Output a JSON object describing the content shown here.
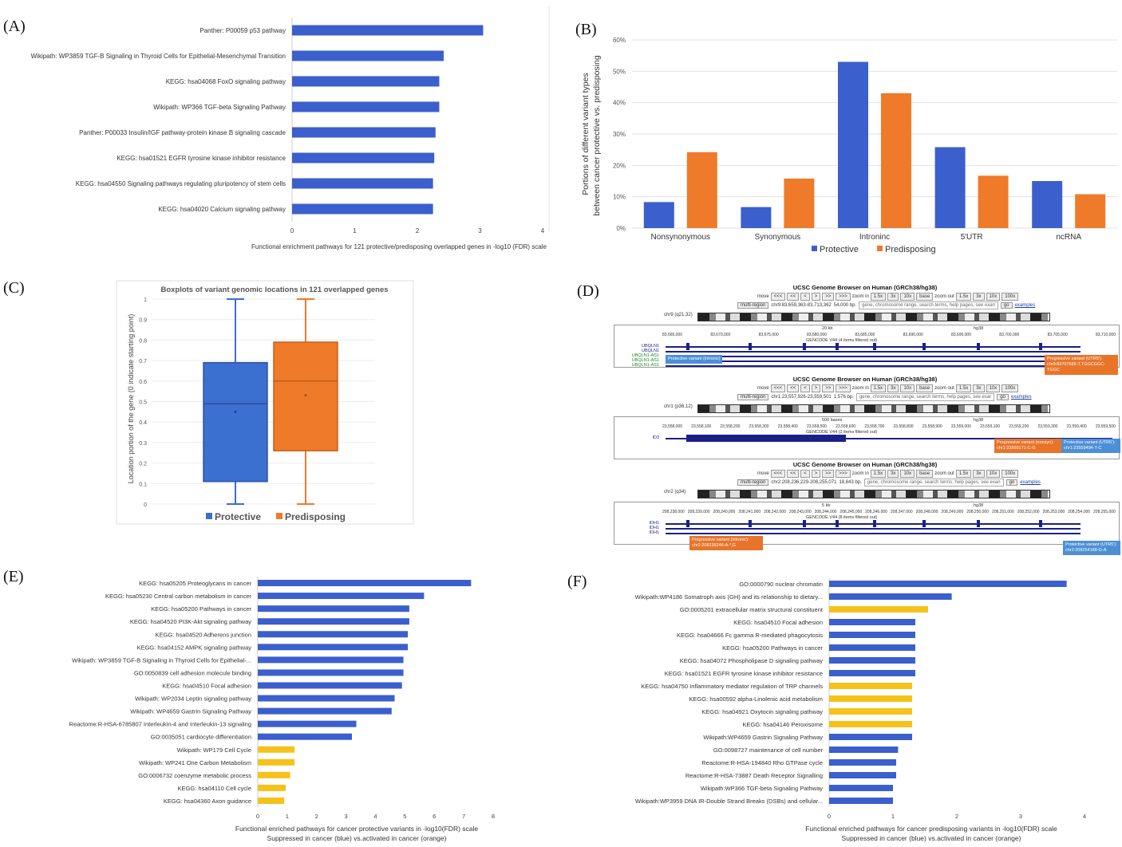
{
  "panels": {
    "A": {
      "letter": "(A)",
      "chart_data": {
        "type": "bar",
        "orientation": "horizontal",
        "categories": [
          "Panther: P00059 p53 pathway",
          "Wikipath: WP3859 TGF-B Signaling in Thyroid Cells for Epithelial-Mesenchymal Transition",
          "KEGG: hsa04068 FoxO signaling pathway",
          "Wikipath: WP366 TGF-beta Signaling Pathway",
          "Panther: P00033 Insulin/IGF pathway-protein kinase B signaling cascade",
          "KEGG: hsa01521 EGFR tyrosine kinase inhibitor resistance",
          "KEGG: hsa04550 Signaling pathways regulating pluripotency of stem cells",
          "KEGG: hsa04020 Calcium signaling pathway"
        ],
        "values": [
          3.05,
          2.42,
          2.35,
          2.35,
          2.29,
          2.27,
          2.25,
          2.25
        ],
        "xticks": [
          "0",
          "1",
          "2",
          "3",
          "4"
        ],
        "xlim": [
          0,
          4
        ],
        "xlabel": "Functional enrichment pathways for 121 protective/predisposing overlapped genes in -log10 (FDR) scale",
        "color": "#3b5fcc"
      }
    },
    "B": {
      "letter": "(B)",
      "chart_data": {
        "type": "bar",
        "categories": [
          "Nonsynonymous",
          "Synonymous",
          "Introninc",
          "5'UTR",
          "ncRNA"
        ],
        "series": [
          {
            "name": "Protective",
            "values": [
              8.3,
              6.7,
              53,
              25.8,
              15
            ],
            "color": "#3b5fcc"
          },
          {
            "name": "Predisposing",
            "values": [
              24.2,
              15.8,
              43,
              16.7,
              10.8
            ],
            "color": "#ef7a2a"
          }
        ],
        "yticks": [
          "0%",
          "10%",
          "20%",
          "30%",
          "40%",
          "50%",
          "60%"
        ],
        "ylim": [
          0,
          60
        ],
        "ylabel_line1": "Portions of different variant types",
        "ylabel_line2": "between cancer protective vs. predisposing",
        "legend": "bottom"
      }
    },
    "C": {
      "letter": "(C)",
      "chart_data": {
        "type": "boxplot",
        "title": "Boxplots of variant genomic locations in 121 overlapped genes",
        "ylabel": "Location portion of the gene (0 indicate starting point)",
        "yticks": [
          "0",
          "0.1",
          "0.2",
          "0.3",
          "0.4",
          "0.5",
          "0.6",
          "0.7",
          "0.8",
          "0.9",
          "1"
        ],
        "ylim": [
          0,
          1
        ],
        "series": [
          {
            "name": "Protective",
            "min": 0,
            "q1": 0.11,
            "median": 0.49,
            "q3": 0.69,
            "max": 1,
            "mean": 0.45,
            "color": "#3b6fd0"
          },
          {
            "name": "Predisposing",
            "min": 0,
            "q1": 0.26,
            "median": 0.6,
            "q3": 0.79,
            "max": 1,
            "mean": 0.53,
            "color": "#ef7a2a"
          }
        ],
        "legend": "bottom"
      }
    },
    "D": {
      "letter": "(D)",
      "browsers": [
        {
          "title": "UCSC Genome Browser on Human (GRCh38/hg38)",
          "nav": [
            "move",
            "<<<",
            "<<",
            "<",
            ">",
            ">>",
            ">>>",
            "zoom in",
            "1.5x",
            "3x",
            "10x",
            "base",
            "zoom out",
            "1.5x",
            "3x",
            "10x",
            "100x"
          ],
          "region_btn": "multi-region",
          "position": "chr9:83,659,363-83,713,362",
          "size": "54,000 bp.",
          "search_placeholder": "gene, chromosome range, search terms, help pages, see exan",
          "go": "go",
          "examples": "examples",
          "chrom": "chr9 (q21.32)",
          "scale": "20 kb",
          "assembly": "hg38",
          "ticks": [
            "83,665,000",
            "83,670,000",
            "83,675,000",
            "83,680,000",
            "83,685,000",
            "83,690,000",
            "83,695,000",
            "83,700,000",
            "83,705,000",
            "83,710,000"
          ],
          "gencode": "GENCODE V44 (4 items filtered out)",
          "genes": [
            "UBQLN1",
            "UBQLN1",
            "UBQLN1-AS1",
            "UBQLN1-AS1",
            "UBQLN1-AS1"
          ],
          "notes": [
            {
              "text": "Protective variant (intronic)",
              "color": "blue"
            },
            {
              "text": "Progressive variant (UTR5'): chr9:83707685-T,TGGCGGC-TGGC",
              "color": "orange"
            }
          ]
        },
        {
          "title": "UCSC Genome Browser on Human (GRCh38/hg38)",
          "nav": [
            "move",
            "<<<",
            "<<",
            "<",
            ">",
            ">>",
            ">>>",
            "zoom in",
            "1.5x",
            "3x",
            "10x",
            "base",
            "zoom out",
            "1.5x",
            "3x",
            "10x",
            "100x"
          ],
          "region_btn": "multi-region",
          "position": "chr1:23,557,926-23,559,501",
          "size": "1,576 bp.",
          "search_placeholder": "gene, chromosome range, search terms, help pages, see exar",
          "go": "go",
          "examples": "examples",
          "chrom": "chr1 (p36.12)",
          "scale": "500 bases",
          "assembly": "hg38",
          "ticks": [
            "23,558,000",
            "23,558,100",
            "23,558,200",
            "23,558,300",
            "23,558,400",
            "23,558,500",
            "23,558,600",
            "23,558,700",
            "23,558,800",
            "23,558,900",
            "23,559,000",
            "23,559,100",
            "23,559,200",
            "23,559,300",
            "23,559,400",
            "23,559,500"
          ],
          "gencode": "GENCODE V44 (2 items filtered out)",
          "genes": [
            "ID3"
          ],
          "notes": [
            {
              "text": "Progressive variant (nonsyn): chr1:23559171-C-G",
              "color": "orange"
            },
            {
              "text": "Protective variant (UTR5'): chr1:23559494-T-C",
              "color": "blue"
            }
          ]
        },
        {
          "title": "UCSC Genome Browser on Human (GRCh38/hg38)",
          "nav": [
            "move",
            "<<<",
            "<<",
            "<",
            ">",
            ">>",
            ">>>",
            "zoom in",
            "1.5x",
            "3x",
            "10x",
            "base",
            "zoom out",
            "1.5x",
            "3x",
            "10x",
            "100x"
          ],
          "region_btn": "multi-region",
          "position": "chr2:208,236,229-208,255,071",
          "size": "18,843 bp.",
          "search_placeholder": "gene, chromosome range, search terms, help pages, see exan",
          "go": "go",
          "examples": "examples",
          "chrom": "chr2 (q34)",
          "scale": "5 kb",
          "assembly": "hg38",
          "ticks": [
            "208,238,000",
            "208,239,000",
            "208,240,000",
            "208,241,000",
            "208,242,000",
            "208,243,000",
            "208,244,000",
            "208,245,000",
            "208,246,000",
            "208,247,000",
            "208,248,000",
            "208,249,000",
            "208,250,000",
            "208,251,000",
            "208,252,000",
            "208,253,000",
            "208,254,000",
            "208,255,000"
          ],
          "gencode": "GENCODE V44 (8 items filtered out)",
          "genes": [
            "IDH1",
            "IDH1",
            "IDH1"
          ],
          "notes": [
            {
              "text": "Progressive variant (intronic): chr2:208239246-A-*,G",
              "color": "orange"
            },
            {
              "text": "Protective variant (UTR5'): chr2:208254188-G-A",
              "color": "blue"
            }
          ]
        }
      ]
    },
    "E": {
      "letter": "(E)",
      "chart_data": {
        "type": "bar",
        "orientation": "horizontal",
        "categories": [
          "KEGG: hsa05205 Proteoglycans in cancer",
          "KEGG: hsa05230 Central carbon metabolism in cancer",
          "KEGG: hsa05200 Pathways in cancer",
          "KEGG: hsa04520 PI3K-Akt signaling pathway",
          "KEGG: hsa04520 Adherens junction",
          "KEGG: hsa04152 AMPK signaling pathway",
          "Wikipath: WP3859 TGF-B Signaling in Thyroid Cells for Epithelial-...",
          "GO:0050839 cell adhesion molecule binding",
          "KEGG: hsa04510 Focal adhesion",
          "Wikipath: WP2034 Leptin signaling pathway",
          "Wikipath: WP4659 Gastrin Signaling Pathway",
          "Reactome:R-HSA-6785807 Interleukin-4 and Interleukin-13 signaling",
          "GO:0035051 cardiocyte differentiation",
          "Wikipath: WP179 Cell Cycle",
          "Wikipath: WP241 One Carbon Metabolism",
          "GO:0006732 coenzyme metabolic process",
          "KEGG: hsa04110 Cell cycle",
          "KEGG: hsa04360 Axon guidance"
        ],
        "values": [
          7.25,
          5.65,
          5.15,
          5.15,
          5.1,
          5.1,
          4.95,
          4.95,
          4.9,
          4.65,
          4.55,
          3.35,
          3.2,
          1.25,
          1.25,
          1.1,
          0.95,
          0.9
        ],
        "colors": [
          "#3b5fcc",
          "#3b5fcc",
          "#3b5fcc",
          "#3b5fcc",
          "#3b5fcc",
          "#3b5fcc",
          "#3b5fcc",
          "#3b5fcc",
          "#3b5fcc",
          "#3b5fcc",
          "#3b5fcc",
          "#3b5fcc",
          "#3b5fcc",
          "#f5c21b",
          "#f5c21b",
          "#f5c21b",
          "#f5c21b",
          "#f5c21b"
        ],
        "xticks": [
          "0",
          "1",
          "2",
          "3",
          "4",
          "5",
          "6",
          "7",
          "8"
        ],
        "xlim": [
          0,
          8
        ],
        "xlabel_line1": "Functional enriched pathways for cancer protective variants in -log10(FDR) scale",
        "xlabel_line2": "Suppressed in cancer (blue) vs.activated in cancer (orange)"
      }
    },
    "F": {
      "letter": "(F)",
      "chart_data": {
        "type": "bar",
        "orientation": "horizontal",
        "categories": [
          "GO:0000790 nuclear chromatin",
          "Wikipath:WP4186 Somatroph axis (GH) and its relationship to dietary...",
          "GO:0005201 extracellular matrix structural constituent",
          "KEGG: hsa04510 Focal adhesion",
          "KEGG: hsa04666 Fc gamma R-mediated phagocytosis",
          "KEGG: hsa05200 Pathways in cancer",
          "KEGG: hsa04072 Phospholipase D signaling pathway",
          "KEGG: hsa01521 EGFR tyrosine kinase inhibitor resistance",
          "KEGG: hsa04750 Inflammatory mediator regulation of TRP channels",
          "KEGG: hsa00592 alpha-Linolenic acid metabolism",
          "KEGG: hsa04921 Oxytocin signaling pathway",
          "KEGG: hsa04146 Peroxisome",
          "Wikipath:WP4659 Gastrin Signaling Pathway",
          "GO:0098727 maintenance of cell number",
          "Reactome:R-HSA-194840 Rho GTPase cycle",
          "Reactome:R-HSA-73887 Death Receptor Signalling",
          "Wikipath:WP366 TGF-beta Signaling Pathway",
          "Wikipath:WP3959 DNA IR-Double Strand Breaks (DSBs) and cellular..."
        ],
        "values": [
          3.72,
          1.92,
          1.55,
          1.35,
          1.35,
          1.35,
          1.35,
          1.35,
          1.3,
          1.3,
          1.3,
          1.3,
          1.3,
          1.08,
          1.05,
          1.05,
          1.0,
          1.0
        ],
        "colors": [
          "#3b5fcc",
          "#3b5fcc",
          "#f5c21b",
          "#3b5fcc",
          "#3b5fcc",
          "#3b5fcc",
          "#3b5fcc",
          "#3b5fcc",
          "#f5c21b",
          "#f5c21b",
          "#f5c21b",
          "#f5c21b",
          "#3b5fcc",
          "#3b5fcc",
          "#3b5fcc",
          "#3b5fcc",
          "#3b5fcc",
          "#3b5fcc"
        ],
        "xticks": [
          "0",
          "1",
          "2",
          "3",
          "4"
        ],
        "xlim": [
          0,
          4
        ],
        "xlabel_line1": "Functional enriched pathways for cancer predisposing variants in -log10(FDR) scale",
        "xlabel_line2": "Suppressed in cancer (blue) vs.activated in cancer (orange)"
      }
    }
  }
}
